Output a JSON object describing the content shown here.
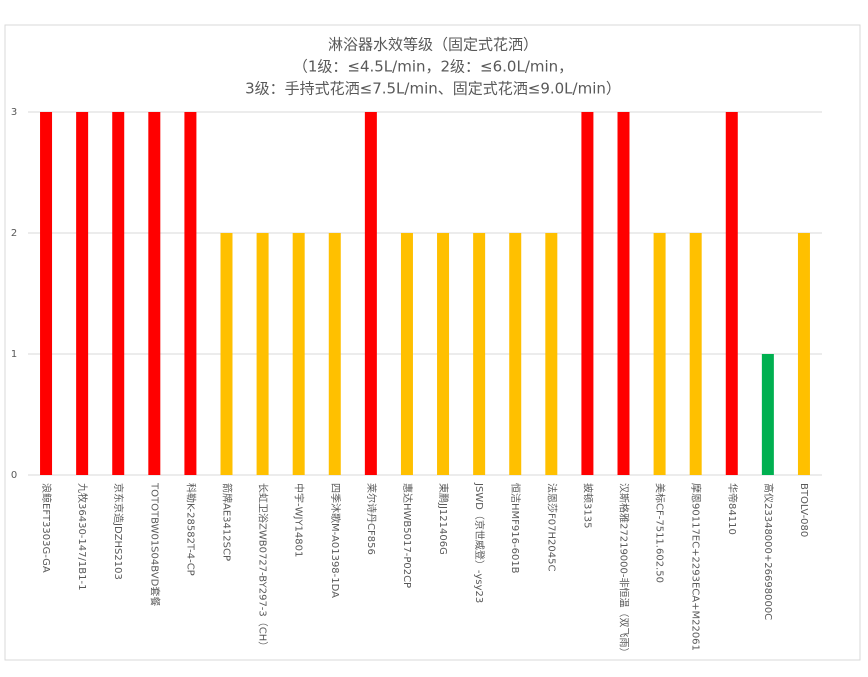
{
  "chart_data": {
    "type": "bar",
    "title": [
      "淋浴器水效等级（固定式花洒）",
      "（1级：≤4.5L/min，2级：≤6.0L/min，",
      "3级：手持式花洒≤7.5L/min、固定式花洒≤9.0L/min）"
    ],
    "categories": [
      "浪鲸EFT3303G-GA",
      "九牧36430-147/1B1-1",
      "京东京造JDZHS2103",
      "TOTOTBW01S04BVD套餐",
      "科勒K-28582T-4-CP",
      "箭牌AE3412SCP",
      "长虹卫浴ZWB0727-BY297-3（CH）",
      "中宇-WJY14801",
      "四季沐歌M-A01398-1DA",
      "莱尔诗丹CF856",
      "惠达HWB5017-P02CP",
      "東鹏JJ121406G",
      "JSWD（京世威登）-ysy23",
      "恒洁HMF916-601B",
      "法恩莎F07H2045C",
      "披顿3135",
      "汉斯格雅27219000-非恒温（双飞雨）",
      "美标CF-7511.602.50",
      "摩恩90117EC+2293ECA+M22061",
      "华帝84110",
      "高仪23348000+26698000C",
      "BTOLV-080"
    ],
    "values": [
      3,
      3,
      3,
      3,
      3,
      2,
      2,
      2,
      2,
      3,
      2,
      2,
      2,
      2,
      2,
      3,
      3,
      2,
      2,
      3,
      1,
      2
    ],
    "colors": [
      "#ff0000",
      "#ff0000",
      "#ff0000",
      "#ff0000",
      "#ff0000",
      "#ffc000",
      "#ffc000",
      "#ffc000",
      "#ffc000",
      "#ff0000",
      "#ffc000",
      "#ffc000",
      "#ffc000",
      "#ffc000",
      "#ffc000",
      "#ff0000",
      "#ff0000",
      "#ffc000",
      "#ffc000",
      "#ff0000",
      "#00b050",
      "#ffc000"
    ],
    "ylim": [
      0,
      3
    ],
    "yticks": [
      0,
      1,
      2,
      3
    ],
    "grid": true
  }
}
